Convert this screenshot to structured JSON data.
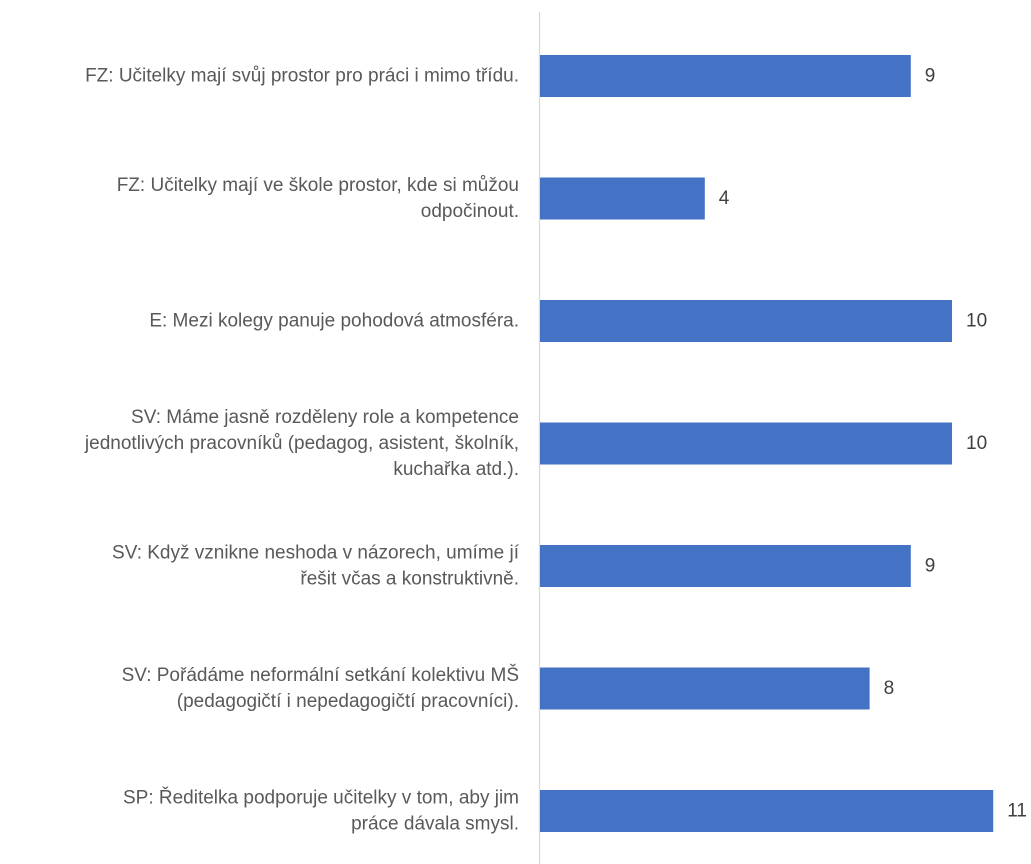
{
  "chart_data": {
    "type": "bar",
    "orientation": "horizontal",
    "categories": [
      [
        "FZ: Učitelky mají svůj prostor pro práci i mimo třídu."
      ],
      [
        "FZ: Učitelky mají ve škole prostor, kde si můžou",
        "odpočinout."
      ],
      [
        "E: Mezi kolegy panuje pohodová atmosféra."
      ],
      [
        "SV: Máme jasně rozděleny role a kompetence",
        "jednotlivých pracovníků (pedagog, asistent, školník,",
        "kuchařka atd.)."
      ],
      [
        "SV: Když vznikne neshoda v názorech, umíme jí",
        "řešit včas a konstruktivně."
      ],
      [
        "SV: Pořádáme neformální setkání kolektivu MŠ",
        "(pedagogičtí i nepedagogičtí pracovníci)."
      ],
      [
        "SP: Ředitelka podporuje učitelky v tom, aby jim",
        "práce dávala smysl."
      ]
    ],
    "values": [
      9,
      4,
      10,
      10,
      9,
      8,
      11
    ],
    "data_labels": [
      "9",
      "4",
      "10",
      "10",
      "9",
      "8",
      "11"
    ],
    "xlim": [
      0,
      11
    ],
    "bar_color": "#4472c4",
    "axis_color": "#d9d9d9",
    "grid": false,
    "legend": "none"
  }
}
